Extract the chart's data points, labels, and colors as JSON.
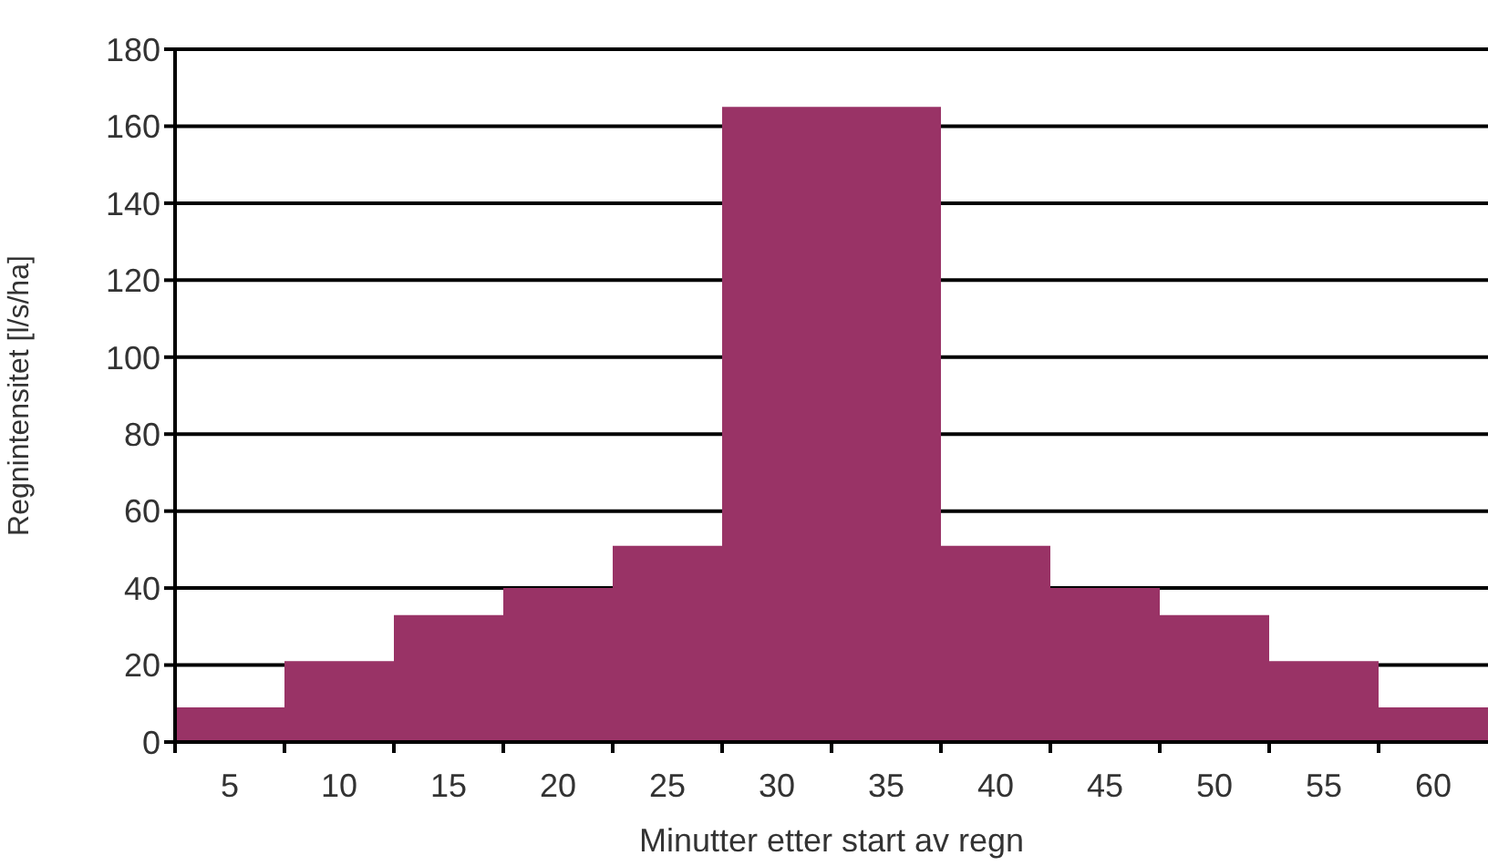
{
  "chart_data": {
    "type": "bar",
    "xlabel": "Minutter etter start av regn",
    "ylabel": "Regnintensitet [l/s/ha]",
    "categories": [
      "5",
      "10",
      "15",
      "20",
      "25",
      "30",
      "35",
      "40",
      "45",
      "50",
      "55",
      "60"
    ],
    "values": [
      9,
      21,
      33,
      40,
      51,
      165,
      165,
      51,
      40,
      33,
      21,
      9
    ],
    "color": "#993366",
    "ylim": [
      0,
      180
    ],
    "yticks": [
      0,
      20,
      40,
      60,
      80,
      100,
      120,
      140,
      160,
      180
    ],
    "grid": "y"
  }
}
